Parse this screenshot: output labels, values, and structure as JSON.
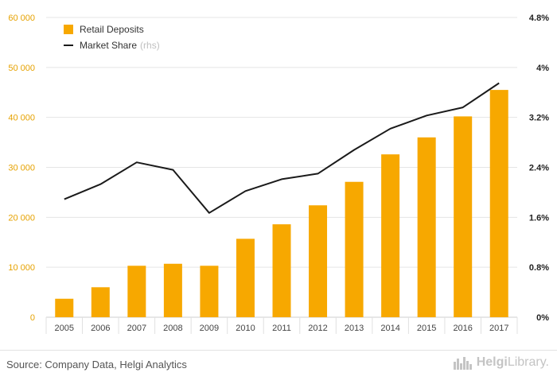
{
  "colors": {
    "bar": "#f7a800",
    "line": "#1a1a1a",
    "left_tick": "#e6a200",
    "right_tick": "#222222",
    "grid": "#e5e5e5"
  },
  "chart_data": {
    "type": "bar",
    "categories": [
      "2005",
      "2006",
      "2007",
      "2008",
      "2009",
      "2010",
      "2011",
      "2012",
      "2013",
      "2014",
      "2015",
      "2016",
      "2017"
    ],
    "series": [
      {
        "name": "Retail Deposits",
        "type": "bar",
        "axis": "left",
        "values": [
          3700,
          6000,
          10300,
          10700,
          10300,
          15700,
          18600,
          22400,
          27100,
          32600,
          36000,
          40200,
          45500
        ]
      },
      {
        "name": "Market Share",
        "type": "line",
        "axis": "right",
        "values": [
          1.89,
          2.13,
          2.48,
          2.36,
          1.67,
          2.02,
          2.21,
          2.3,
          2.68,
          3.02,
          3.23,
          3.36,
          3.75
        ]
      }
    ],
    "left_axis": {
      "min": 0,
      "max": 60000,
      "ticks": [
        "0",
        "10 000",
        "20 000",
        "30 000",
        "40 000",
        "50 000",
        "60 000"
      ]
    },
    "right_axis": {
      "min": 0,
      "max": 4.8,
      "ticks": [
        "0%",
        "0.8%",
        "1.6%",
        "2.4%",
        "3.2%",
        "4%",
        "4.8%"
      ]
    },
    "grid": true,
    "legend_position": "top-left"
  },
  "legend": {
    "bar_label": "Retail Deposits",
    "line_label": "Market Share",
    "line_suffix": "(rhs)"
  },
  "footer": {
    "source": "Source: Company Data, Helgi Analytics",
    "logo_prefix": "Helgi",
    "logo_suffix": "Library."
  }
}
